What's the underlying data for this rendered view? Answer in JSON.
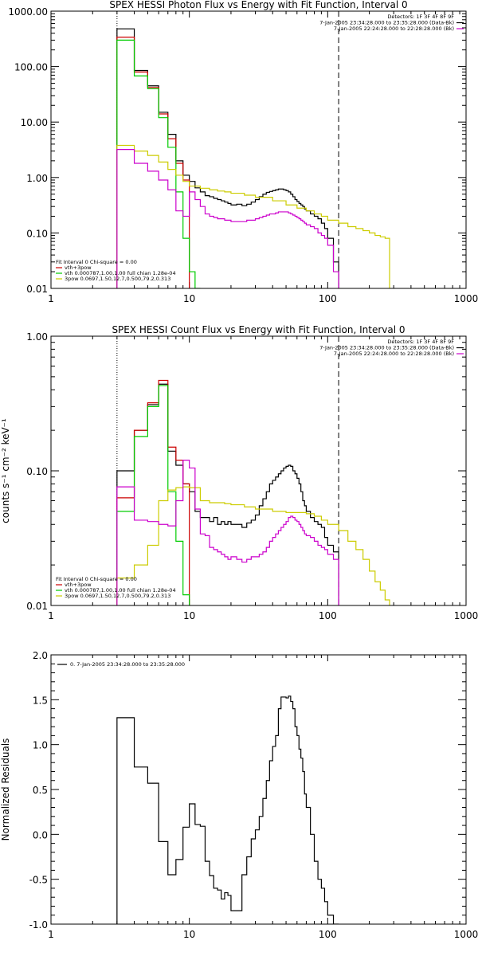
{
  "chart_data": [
    {
      "type": "line",
      "title": "SPEX HESSI Photon Flux vs Energy with Fit Function, Interval 0",
      "xlabel": "",
      "ylabel": "",
      "xscale": "log",
      "yscale": "log",
      "xlim": [
        1,
        1000
      ],
      "ylim": [
        0.01,
        1000
      ],
      "x_ticks": [
        "1",
        "10",
        "100",
        "1000"
      ],
      "y_ticks": [
        "0.01",
        "0.10",
        "1.00",
        "10.00",
        "100.00",
        "1000.00"
      ],
      "header_lines": [
        "Detectors: 1F 3F 4F 8F 9F",
        "7-Jan-2005 23:34:28.000 to 23:35:28.000 (Data-Bk)",
        "7-Jan-2005 22:24:28.000 to 22:28:28.000 (Bk)"
      ],
      "header_colors": [
        "#000000",
        "#000000",
        "#cc00cc"
      ],
      "legend_lines": [
        "Fit Interval 0   Chi-square = 0.00",
        "vth+3pow",
        "vth 0.000787,1.00,1.00  full chian 1.28e-04",
        "3pow 0.0697,1.50,12.7,0.500,79.2,0.313"
      ],
      "legend_colors": [
        "#000000",
        "#cc0000",
        "#00cc00",
        "#cccc00"
      ],
      "dotted_x": 3,
      "dashed_x": 120,
      "series": [
        {
          "color": "#000000",
          "edges": [
            3,
            4,
            5,
            6,
            7,
            8,
            9,
            10,
            11,
            12,
            13,
            14,
            15,
            16,
            17,
            18,
            19,
            20,
            22,
            24,
            26,
            28,
            30,
            32,
            34,
            36,
            38,
            40,
            42,
            44,
            46,
            48,
            50,
            52,
            54,
            56,
            58,
            60,
            62,
            64,
            66,
            68,
            70,
            75,
            80,
            85,
            90,
            95,
            100,
            110,
            120
          ],
          "values": [
            480,
            85,
            45,
            15,
            6,
            2,
            1.1,
            0.85,
            0.65,
            0.55,
            0.47,
            0.45,
            0.42,
            0.4,
            0.38,
            0.36,
            0.34,
            0.32,
            0.33,
            0.31,
            0.33,
            0.36,
            0.4,
            0.45,
            0.5,
            0.54,
            0.56,
            0.58,
            0.6,
            0.62,
            0.62,
            0.6,
            0.58,
            0.55,
            0.5,
            0.45,
            0.4,
            0.37,
            0.34,
            0.32,
            0.3,
            0.27,
            0.25,
            0.22,
            0.2,
            0.18,
            0.15,
            0.12,
            0.08,
            0.03
          ]
        },
        {
          "color": "#cc0000",
          "edges": [
            3,
            4,
            5,
            6,
            7,
            8,
            9,
            10
          ],
          "values": [
            340,
            80,
            42,
            14,
            5,
            1.8,
            0.9
          ]
        },
        {
          "color": "#00cc00",
          "edges": [
            3,
            4,
            5,
            6,
            7,
            8,
            9,
            10,
            11,
            12
          ],
          "values": [
            300,
            68,
            40,
            12,
            3.5,
            0.55,
            0.08,
            0.02,
            0.009
          ]
        },
        {
          "color": "#cccc00",
          "edges": [
            3,
            4,
            5,
            6,
            7,
            8,
            9,
            10,
            12,
            14,
            16,
            18,
            20,
            25,
            30,
            40,
            50,
            60,
            70,
            80,
            90,
            100,
            120,
            140,
            160,
            180,
            200,
            220,
            240,
            260,
            280
          ],
          "values": [
            3.8,
            3,
            2.5,
            1.9,
            1.4,
            1.1,
            0.85,
            0.7,
            0.64,
            0.6,
            0.57,
            0.55,
            0.52,
            0.48,
            0.44,
            0.38,
            0.32,
            0.28,
            0.25,
            0.22,
            0.2,
            0.17,
            0.15,
            0.13,
            0.12,
            0.11,
            0.1,
            0.09,
            0.085,
            0.08
          ]
        },
        {
          "color": "#cc00cc",
          "edges": [
            3,
            4,
            5,
            6,
            7,
            8,
            9,
            10,
            11,
            12,
            13,
            14,
            15,
            16,
            17,
            18,
            19,
            20,
            22,
            24,
            26,
            28,
            30,
            32,
            34,
            36,
            38,
            40,
            42,
            44,
            46,
            48,
            50,
            52,
            54,
            56,
            58,
            60,
            62,
            64,
            66,
            68,
            70,
            75,
            80,
            85,
            90,
            95,
            100,
            110,
            120
          ],
          "values": [
            3.2,
            1.8,
            1.3,
            0.9,
            0.6,
            0.25,
            0.2,
            0.55,
            0.4,
            0.3,
            0.22,
            0.2,
            0.19,
            0.18,
            0.18,
            0.17,
            0.17,
            0.16,
            0.16,
            0.16,
            0.17,
            0.17,
            0.18,
            0.19,
            0.2,
            0.21,
            0.22,
            0.22,
            0.23,
            0.24,
            0.24,
            0.24,
            0.24,
            0.23,
            0.22,
            0.21,
            0.2,
            0.19,
            0.18,
            0.17,
            0.16,
            0.15,
            0.14,
            0.13,
            0.12,
            0.1,
            0.09,
            0.08,
            0.06,
            0.02
          ]
        }
      ]
    },
    {
      "type": "line",
      "title": "SPEX HESSI Count Flux vs Energy with Fit Function, Interval 0",
      "xlabel": "",
      "ylabel": "counts s⁻¹ cm⁻² keV⁻¹",
      "xscale": "log",
      "yscale": "log",
      "xlim": [
        1,
        1000
      ],
      "ylim": [
        0.01,
        1
      ],
      "x_ticks": [
        "1",
        "10",
        "100",
        "1000"
      ],
      "y_ticks": [
        "0.01",
        "0.10",
        "1.00"
      ],
      "header_lines": [
        "Detectors: 1F 3F 4F 8F 9F",
        "7-Jan-2005 23:34:28.000 to 23:35:28.000 (Data-Bk)",
        "7-Jan-2005 22:24:28.000 to 22:28:28.000 (Bk)"
      ],
      "header_colors": [
        "#000000",
        "#000000",
        "#cc00cc"
      ],
      "legend_lines": [
        "Fit Interval 0   Chi-square = 0.00",
        "vth+3pow",
        "vth 0.000787,1.00,1.00  full chian 1.28e-04",
        "3pow 0.0697,1.50,12.7,0.500,79.2,0.313"
      ],
      "legend_colors": [
        "#000000",
        "#cc0000",
        "#00cc00",
        "#cccc00"
      ],
      "dotted_x": 3,
      "dashed_x": 120,
      "series": [
        {
          "color": "#000000",
          "edges": [
            3,
            4,
            5,
            6,
            7,
            8,
            9,
            10,
            11,
            12,
            13,
            14,
            15,
            16,
            17,
            18,
            19,
            20,
            22,
            24,
            26,
            28,
            30,
            32,
            34,
            36,
            38,
            40,
            42,
            44,
            46,
            48,
            50,
            52,
            54,
            56,
            58,
            60,
            62,
            64,
            66,
            68,
            70,
            75,
            80,
            85,
            90,
            95,
            100,
            110,
            120
          ],
          "values": [
            0.1,
            0.2,
            0.31,
            0.44,
            0.14,
            0.11,
            0.08,
            0.07,
            0.05,
            0.045,
            0.045,
            0.042,
            0.045,
            0.04,
            0.042,
            0.04,
            0.042,
            0.04,
            0.04,
            0.038,
            0.041,
            0.043,
            0.047,
            0.055,
            0.062,
            0.07,
            0.08,
            0.085,
            0.09,
            0.095,
            0.1,
            0.105,
            0.108,
            0.11,
            0.108,
            0.1,
            0.095,
            0.088,
            0.08,
            0.07,
            0.06,
            0.055,
            0.05,
            0.045,
            0.042,
            0.04,
            0.038,
            0.032,
            0.028,
            0.025
          ]
        },
        {
          "color": "#cc0000",
          "edges": [
            3,
            4,
            5,
            6,
            7,
            8,
            9,
            10
          ],
          "values": [
            0.063,
            0.2,
            0.32,
            0.47,
            0.15,
            0.12,
            0.08
          ]
        },
        {
          "color": "#00cc00",
          "edges": [
            3,
            4,
            5,
            6,
            7,
            8,
            9,
            10
          ],
          "values": [
            0.05,
            0.18,
            0.3,
            0.43,
            0.07,
            0.03,
            0.012
          ]
        },
        {
          "color": "#cccc00",
          "edges": [
            3,
            4,
            5,
            6,
            7,
            8,
            9,
            10,
            12,
            14,
            16,
            18,
            20,
            25,
            30,
            40,
            50,
            60,
            70,
            80,
            90,
            100,
            120,
            140,
            160,
            180,
            200,
            220,
            240,
            260,
            280
          ],
          "values": [
            0.016,
            0.02,
            0.028,
            0.06,
            0.072,
            0.075,
            0.076,
            0.075,
            0.06,
            0.058,
            0.058,
            0.057,
            0.056,
            0.054,
            0.052,
            0.05,
            0.049,
            0.049,
            0.048,
            0.046,
            0.043,
            0.04,
            0.036,
            0.03,
            0.026,
            0.022,
            0.018,
            0.015,
            0.013,
            0.011
          ]
        },
        {
          "color": "#cc00cc",
          "edges": [
            3,
            4,
            5,
            6,
            7,
            8,
            9,
            10,
            11,
            12,
            13,
            14,
            15,
            16,
            17,
            18,
            19,
            20,
            22,
            24,
            26,
            28,
            30,
            32,
            34,
            36,
            38,
            40,
            42,
            44,
            46,
            48,
            50,
            52,
            54,
            56,
            58,
            60,
            62,
            64,
            66,
            68,
            70,
            75,
            80,
            85,
            90,
            95,
            100,
            110,
            120
          ],
          "values": [
            0.076,
            0.043,
            0.042,
            0.04,
            0.039,
            0.06,
            0.12,
            0.105,
            0.052,
            0.034,
            0.033,
            0.027,
            0.026,
            0.025,
            0.024,
            0.023,
            0.022,
            0.023,
            0.022,
            0.021,
            0.022,
            0.023,
            0.023,
            0.024,
            0.025,
            0.027,
            0.03,
            0.032,
            0.034,
            0.036,
            0.038,
            0.04,
            0.042,
            0.045,
            0.046,
            0.045,
            0.043,
            0.042,
            0.04,
            0.038,
            0.036,
            0.034,
            0.033,
            0.032,
            0.03,
            0.028,
            0.027,
            0.026,
            0.024,
            0.022
          ]
        }
      ]
    },
    {
      "type": "line",
      "title": "",
      "xlabel": "",
      "ylabel": "Normalized Residuals",
      "xscale": "log",
      "yscale": "linear",
      "xlim": [
        1,
        1000
      ],
      "ylim": [
        -1.0,
        2.0
      ],
      "x_ticks": [
        "1",
        "10",
        "100",
        "1000"
      ],
      "y_ticks": [
        "-1.0",
        "-0.5",
        "0.0",
        "0.5",
        "1.0",
        "1.5",
        "2.0"
      ],
      "legend_lines": [
        "0. 7-Jan-2005 23:34:28.000 to 23:35:28.000"
      ],
      "legend_colors": [
        "#000000"
      ],
      "series": [
        {
          "color": "#000000",
          "edges": [
            3,
            4,
            5,
            6,
            7,
            8,
            9,
            10,
            11,
            12,
            13,
            14,
            15,
            16,
            17,
            18,
            19,
            20,
            22,
            24,
            26,
            28,
            30,
            32,
            34,
            36,
            38,
            40,
            42,
            44,
            46,
            48,
            50,
            52,
            54,
            56,
            58,
            60,
            62,
            64,
            66,
            68,
            70,
            75,
            80,
            85,
            90,
            95,
            100,
            110,
            120
          ],
          "values": [
            1.3,
            0.75,
            0.57,
            -0.08,
            -0.45,
            -0.28,
            0.08,
            0.34,
            0.11,
            0.09,
            -0.3,
            -0.46,
            -0.6,
            -0.62,
            -0.72,
            -0.65,
            -0.68,
            -0.85,
            -0.85,
            -0.45,
            -0.25,
            -0.05,
            0.05,
            0.2,
            0.4,
            0.6,
            0.82,
            0.98,
            1.1,
            1.4,
            1.53,
            1.53,
            1.52,
            1.54,
            1.48,
            1.4,
            1.2,
            1.1,
            0.95,
            0.85,
            0.7,
            0.45,
            0.3,
            0.0,
            -0.3,
            -0.5,
            -0.6,
            -0.75,
            -0.9,
            -1.0
          ]
        }
      ]
    }
  ]
}
